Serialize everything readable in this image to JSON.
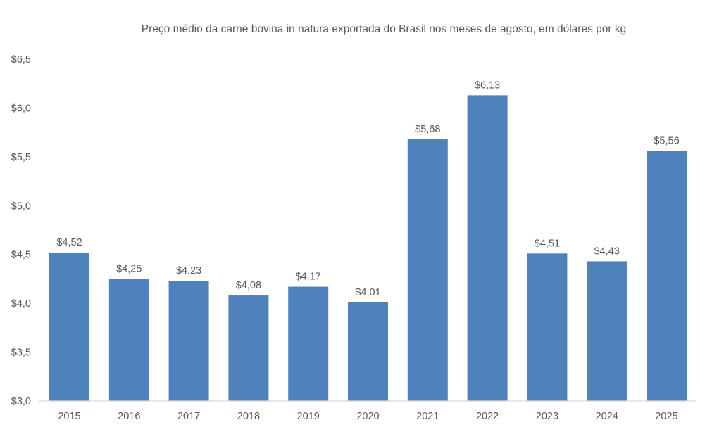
{
  "chart_data": {
    "type": "bar",
    "title": "Preço médio da carne bovina in natura exportada do Brasil nos meses de agosto, em dólares por kg",
    "xlabel": "",
    "ylabel": "",
    "categories": [
      "2015",
      "2016",
      "2017",
      "2018",
      "2019",
      "2020",
      "2021",
      "2022",
      "2023",
      "2024",
      "2025"
    ],
    "values": [
      4.52,
      4.25,
      4.23,
      4.08,
      4.17,
      4.01,
      5.68,
      6.13,
      4.51,
      4.43,
      5.56
    ],
    "value_labels": [
      "$4,52",
      "$4,25",
      "$4,23",
      "$4,08",
      "$4,17",
      "$4,01",
      "$5,68",
      "$6,13",
      "$4,51",
      "$4,43",
      "$5,56"
    ],
    "ylim": [
      3.0,
      6.5
    ],
    "yticks": [
      3.0,
      3.5,
      4.0,
      4.5,
      5.0,
      5.5,
      6.0,
      6.5
    ],
    "ytick_labels": [
      "$3,0",
      "$3,5",
      "$4,0",
      "$4,5",
      "$5,0",
      "$5,5",
      "$6,0",
      "$6,5"
    ],
    "grid": false,
    "legend": "none",
    "bar_color": "#4F81BD"
  }
}
